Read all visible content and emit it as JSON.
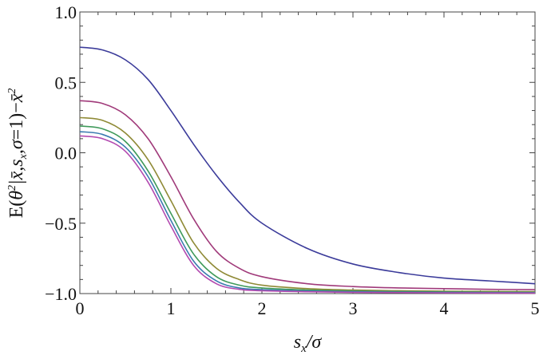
{
  "chart_data": {
    "type": "line",
    "title": "",
    "xlabel": "s_x/σ",
    "ylabel": "E(θ²|x̄, s_x, σ=1) − x̄²",
    "xlim": [
      0,
      5
    ],
    "ylim": [
      -1.0,
      1.0
    ],
    "x_ticks": [
      0,
      1,
      2,
      3,
      4,
      5
    ],
    "x_tick_labels": [
      "0",
      "1",
      "2",
      "3",
      "4",
      "5"
    ],
    "y_ticks": [
      -1.0,
      -0.5,
      0.0,
      0.5,
      1.0
    ],
    "y_tick_labels": [
      "−1.0",
      "−0.5",
      "0.0",
      "0.5",
      "1.0"
    ],
    "grid": false,
    "legend": "none",
    "x": [
      0,
      0.25,
      0.5,
      0.75,
      1.0,
      1.25,
      1.5,
      1.75,
      2.0,
      2.5,
      3.0,
      3.5,
      4.0,
      4.5,
      5.0
    ],
    "series": [
      {
        "color": "#3b3b9a",
        "values": [
          0.75,
          0.73,
          0.66,
          0.52,
          0.3,
          0.06,
          -0.16,
          -0.35,
          -0.5,
          -0.68,
          -0.79,
          -0.85,
          -0.89,
          -0.91,
          -0.93
        ]
      },
      {
        "color": "#a03a7a",
        "values": [
          0.37,
          0.35,
          0.27,
          0.1,
          -0.17,
          -0.47,
          -0.7,
          -0.82,
          -0.88,
          -0.93,
          -0.95,
          -0.96,
          -0.965,
          -0.97,
          -0.972
        ]
      },
      {
        "color": "#8f8a36",
        "values": [
          0.25,
          0.23,
          0.14,
          -0.05,
          -0.34,
          -0.64,
          -0.82,
          -0.9,
          -0.94,
          -0.965,
          -0.975,
          -0.98,
          -0.983,
          -0.985,
          -0.986
        ]
      },
      {
        "color": "#3f9a5a",
        "values": [
          0.19,
          0.17,
          0.08,
          -0.13,
          -0.43,
          -0.72,
          -0.88,
          -0.94,
          -0.96,
          -0.975,
          -0.982,
          -0.986,
          -0.988,
          -0.99,
          -0.991
        ]
      },
      {
        "color": "#3a7ab0",
        "values": [
          0.15,
          0.13,
          0.04,
          -0.17,
          -0.48,
          -0.77,
          -0.91,
          -0.96,
          -0.972,
          -0.982,
          -0.987,
          -0.99,
          -0.992,
          -0.993,
          -0.994
        ]
      },
      {
        "color": "#b34ab0",
        "values": [
          0.12,
          0.1,
          0.01,
          -0.21,
          -0.52,
          -0.8,
          -0.93,
          -0.97,
          -0.98,
          -0.987,
          -0.991,
          -0.993,
          -0.995,
          -0.996,
          -0.997
        ]
      }
    ]
  }
}
